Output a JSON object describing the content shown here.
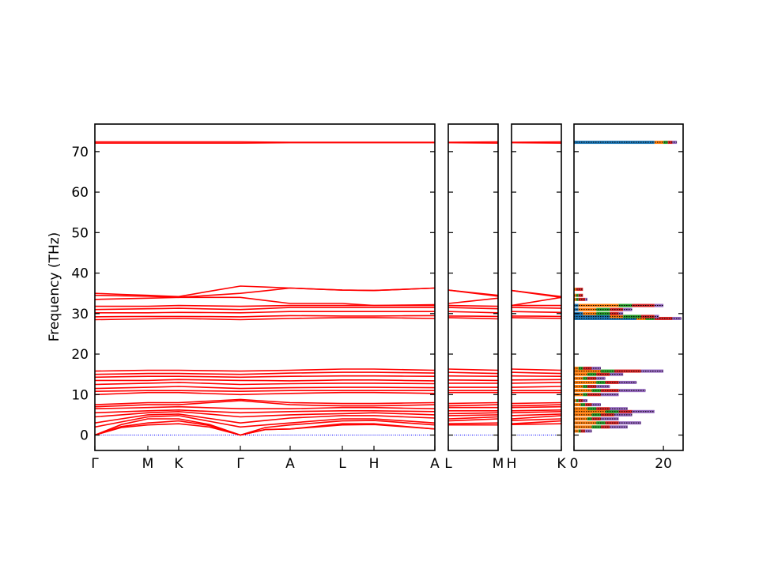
{
  "chart_data": {
    "type": "line",
    "ylabel": "Frequency (THz)",
    "ylim": [
      -3.8,
      76.8
    ],
    "yticks": [
      0,
      10,
      20,
      30,
      40,
      50,
      60,
      70
    ],
    "band_color": "#ff0000",
    "zero_line_color": "#0000ff",
    "band_panels": [
      {
        "labels": [
          "Γ",
          "M",
          "K",
          "Γ",
          "A",
          "L",
          "H",
          "A"
        ]
      },
      {
        "labels": [
          "L",
          "M"
        ]
      },
      {
        "labels": [
          "H",
          "K"
        ]
      }
    ],
    "bands": [
      [
        0,
        2.5,
        2.8,
        0,
        1.5,
        2.5,
        2.6,
        1.5,
        2.5,
        2.5,
        2.6,
        2.8
      ],
      [
        0,
        3,
        3.5,
        0,
        1.5,
        2.8,
        2.8,
        1.5,
        2.8,
        3,
        2.8,
        3.5
      ],
      [
        0,
        4,
        4,
        0,
        2.5,
        3.5,
        3.6,
        2.5,
        3.5,
        4,
        3.6,
        4
      ],
      [
        2,
        4.5,
        4.8,
        2,
        3,
        4,
        4,
        3,
        4,
        4.5,
        4,
        4.8
      ],
      [
        3,
        5,
        5.2,
        3,
        4.2,
        4.8,
        4.8,
        4.2,
        4.8,
        5,
        4.8,
        5.2
      ],
      [
        4.5,
        5.5,
        5.8,
        4.5,
        5,
        5.3,
        5.5,
        5,
        5.3,
        5.5,
        5.5,
        5.8
      ],
      [
        5.5,
        6,
        6.2,
        5.5,
        5.8,
        6,
        6,
        5.8,
        6,
        6,
        6,
        6.2
      ],
      [
        6.5,
        6.8,
        7,
        6.5,
        6.5,
        6.8,
        6.8,
        6.5,
        6.8,
        6.8,
        6.8,
        7
      ],
      [
        7,
        7.5,
        7.5,
        8.5,
        7.5,
        7.2,
        7.2,
        7.5,
        7.2,
        7.5,
        7.2,
        7.5
      ],
      [
        7.5,
        8,
        8,
        8.8,
        8,
        7.8,
        7.8,
        8,
        7.8,
        8,
        7.8,
        8
      ],
      [
        10,
        10.5,
        10.5,
        10,
        10.3,
        10.5,
        10.5,
        10.3,
        10.5,
        10.5,
        10.5,
        10.5
      ],
      [
        10.8,
        11,
        11,
        10.8,
        11,
        11,
        11,
        11,
        11,
        11,
        11,
        11
      ],
      [
        11.5,
        11.8,
        12,
        11.5,
        11.7,
        11.8,
        11.8,
        11.7,
        11.8,
        11.8,
        11.8,
        12
      ],
      [
        12.5,
        12.8,
        13,
        12.5,
        12.7,
        12.8,
        12.8,
        12.7,
        12.8,
        12.8,
        12.8,
        13
      ],
      [
        13.5,
        13.5,
        13.7,
        13.5,
        13.4,
        13.6,
        13.6,
        13.4,
        13.6,
        13.5,
        13.6,
        13.7
      ],
      [
        14.3,
        14.5,
        14.5,
        14.3,
        14.5,
        14.6,
        14.6,
        14.5,
        14.6,
        14.5,
        14.6,
        14.5
      ],
      [
        15,
        15.2,
        15.2,
        15,
        15.3,
        15.5,
        15.5,
        15.3,
        15.5,
        15.2,
        15.5,
        15.2
      ],
      [
        15.8,
        16,
        16,
        15.8,
        16,
        16.3,
        16.3,
        16,
        16.3,
        16,
        16.3,
        16
      ],
      [
        28.5,
        28.7,
        28.8,
        28.5,
        28.8,
        29,
        29,
        28.8,
        29,
        28.7,
        29,
        28.8
      ],
      [
        29.2,
        29.3,
        29.3,
        29.2,
        29.5,
        29.4,
        29.4,
        29.5,
        29.4,
        29.3,
        29.4,
        29.3
      ],
      [
        30.2,
        30.2,
        30.3,
        30.2,
        30.5,
        30.5,
        30.5,
        30.5,
        30.5,
        30.2,
        30.5,
        30.3
      ],
      [
        31,
        31.2,
        31.3,
        31,
        31.5,
        31.5,
        31.5,
        31.5,
        31.5,
        31.2,
        31.5,
        31.3
      ],
      [
        31.8,
        31.8,
        32,
        31.8,
        32,
        32,
        32,
        32,
        32,
        31.8,
        32,
        32
      ],
      [
        33.5,
        33.8,
        34,
        34,
        32.5,
        32.5,
        32,
        32.2,
        32.5,
        33.8,
        32,
        34
      ],
      [
        34.5,
        34.3,
        34,
        35,
        36.3,
        35.8,
        35.7,
        36.3,
        35.8,
        34.3,
        35.7,
        34
      ],
      [
        35,
        34.5,
        34.2,
        36.8,
        36.3,
        35.8,
        35.7,
        36.3,
        35.8,
        34.5,
        35.7,
        34.2
      ],
      [
        72.1,
        72.1,
        72.1,
        72.1,
        72.2,
        72.2,
        72.2,
        72.2,
        72.2,
        72.1,
        72.2,
        72.1
      ],
      [
        72.4,
        72.4,
        72.4,
        72.4,
        72.3,
        72.3,
        72.3,
        72.3,
        72.3,
        72.4,
        72.3,
        72.4
      ]
    ],
    "dos": {
      "xlim": [
        0,
        24.4
      ],
      "xticks": [
        0,
        20
      ],
      "total_style": "dotted black",
      "frequencies": [
        1,
        2,
        3,
        4,
        5,
        5.8,
        6.5,
        7.5,
        8.5,
        10,
        11,
        12,
        13,
        14,
        15,
        15.8,
        16.5,
        28.8,
        29.3,
        30,
        31,
        32,
        33.5,
        34.5,
        36,
        72.3
      ],
      "series": [
        {
          "color": "#1f77b4",
          "values": [
            0,
            0,
            0,
            0,
            0,
            0,
            0,
            0,
            0,
            0,
            0,
            0,
            0,
            0,
            0,
            0,
            0,
            14,
            8,
            2,
            1,
            1,
            0,
            0,
            0,
            18
          ]
        },
        {
          "color": "#ff7f0e",
          "values": [
            1,
            4,
            5,
            3,
            4,
            7,
            3,
            1.5,
            0.5,
            2,
            4,
            2,
            5,
            2,
            3,
            6,
            1,
            2,
            3,
            3,
            4,
            9,
            0.5,
            0.5,
            0.5,
            2
          ]
        },
        {
          "color": "#2ca02c",
          "values": [
            0.5,
            2,
            2,
            1,
            2,
            3,
            2,
            1,
            0.5,
            1,
            2,
            1,
            2,
            1,
            2,
            3,
            1,
            2,
            4,
            3,
            3,
            3,
            0.5,
            0.5,
            0,
            1
          ]
        },
        {
          "color": "#d62728",
          "values": [
            1,
            2,
            3,
            2,
            3,
            3,
            3,
            1.5,
            1,
            3,
            4,
            2,
            3,
            2,
            3,
            6,
            2,
            4,
            3,
            2,
            3,
            5,
            1.5,
            1,
            1.5,
            1
          ]
        },
        {
          "color": "#9467bd",
          "values": [
            1.5,
            4,
            5,
            4,
            4,
            5,
            4,
            2,
            1,
            4,
            6,
            3,
            4,
            2,
            3,
            5,
            2,
            2,
            1,
            1,
            2,
            2,
            0.5,
            0,
            0,
            1
          ]
        }
      ]
    }
  }
}
